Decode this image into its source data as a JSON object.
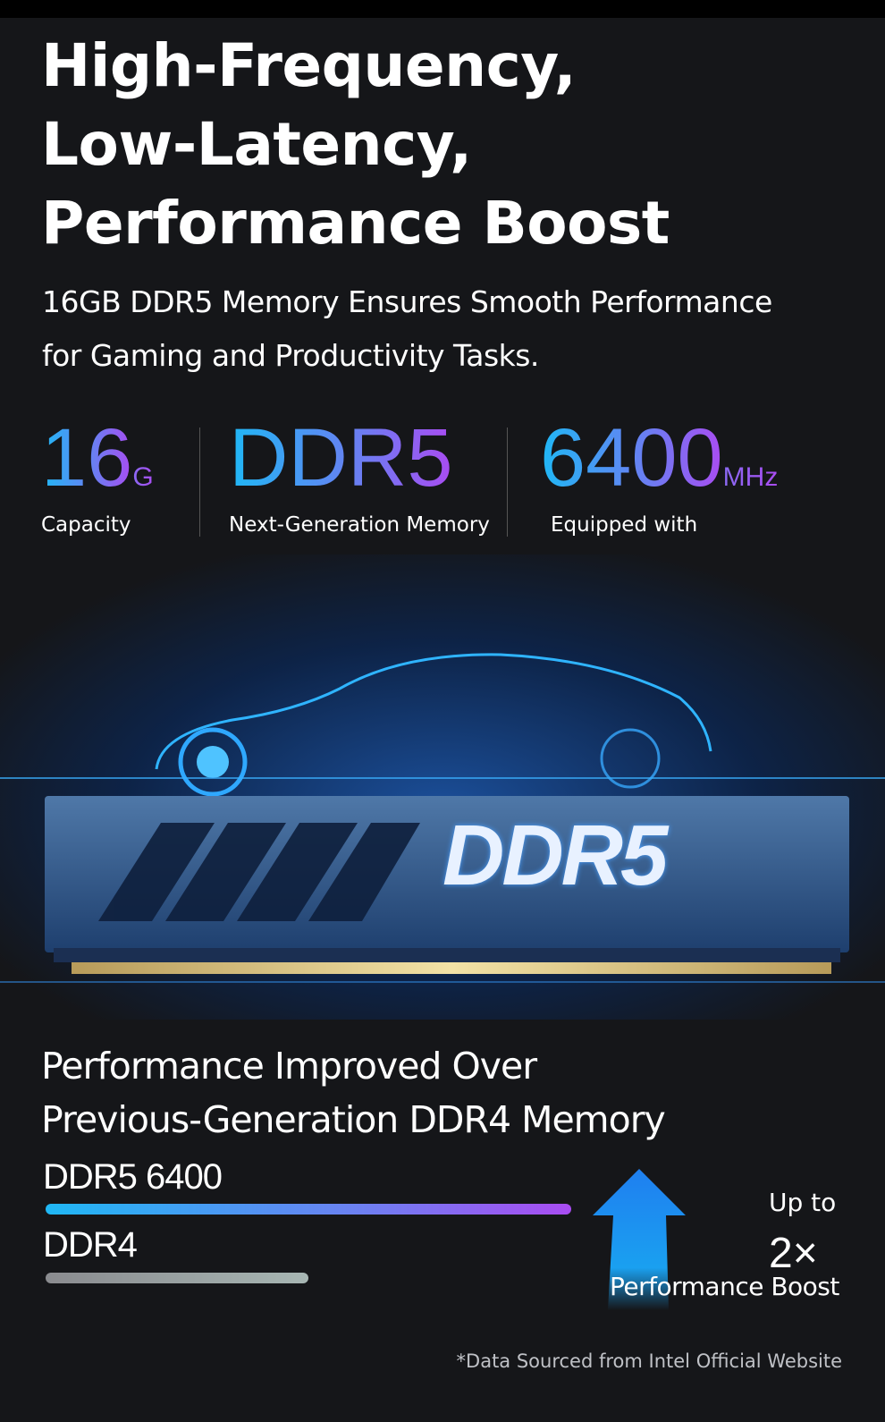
{
  "headline": [
    "High-Frequency,",
    "Low-Latency,",
    "Performance Boost"
  ],
  "subtitle": [
    "16GB DDR5 Memory Ensures Smooth Performance",
    "for Gaming and Productivity Tasks."
  ],
  "specs": [
    {
      "value": "16",
      "unit": "G",
      "label": "Capacity"
    },
    {
      "value": "DDR5",
      "unit": "",
      "label": "Next-Generation Memory"
    },
    {
      "value": "6400",
      "unit": "MHz",
      "label": "Equipped with"
    }
  ],
  "module_label": "DDR5",
  "comparison": {
    "title": [
      "Performance Improved Over",
      "Previous-Generation DDR4 Memory"
    ],
    "bars": [
      {
        "label": "DDR5 6400",
        "value": 2,
        "color_start": "#1fb8f5",
        "color_end": "#a94cf2"
      },
      {
        "label": "DDR4",
        "value": 1,
        "color_start": "#8a8b8f",
        "color_end": "#a7b6b3"
      }
    ],
    "up_to": "Up to",
    "multiplier": "2×",
    "boost_label": "Performance Boost"
  },
  "footnote": "*Data Sourced from Intel Official Website",
  "colors": {
    "background": "#151619",
    "accent_blue": "#1fb8f5",
    "accent_purple": "#a94cf2"
  }
}
